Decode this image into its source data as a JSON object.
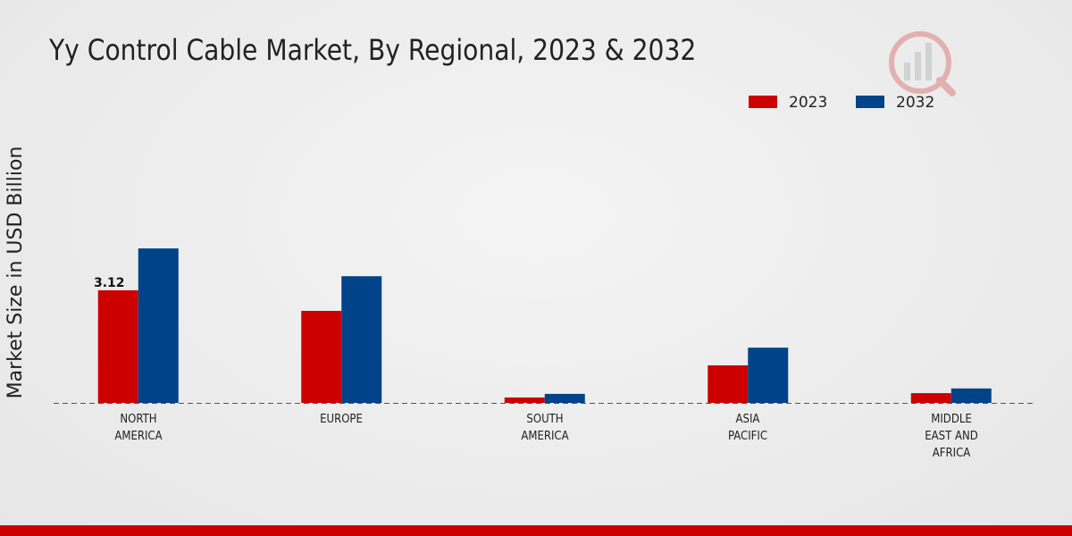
{
  "chart_data": {
    "type": "bar",
    "title": "Yy Control Cable Market, By Regional, 2023 & 2032",
    "y_label": "Market Size in USD Billion",
    "categories": [
      "NORTH AMERICA",
      "EUROPE",
      "SOUTH AMERICA",
      "ASIA PACIFIC",
      "MIDDLE EAST AND AFRICA"
    ],
    "series": [
      {
        "name": "2023",
        "color": "#cc0000",
        "values": [
          3.12,
          2.55,
          0.15,
          1.04,
          0.27
        ]
      },
      {
        "name": "2032",
        "color": "#004389",
        "values": [
          4.28,
          3.51,
          0.25,
          1.53,
          0.4
        ]
      }
    ],
    "labeled_points": [
      [
        0,
        0
      ]
    ]
  }
}
